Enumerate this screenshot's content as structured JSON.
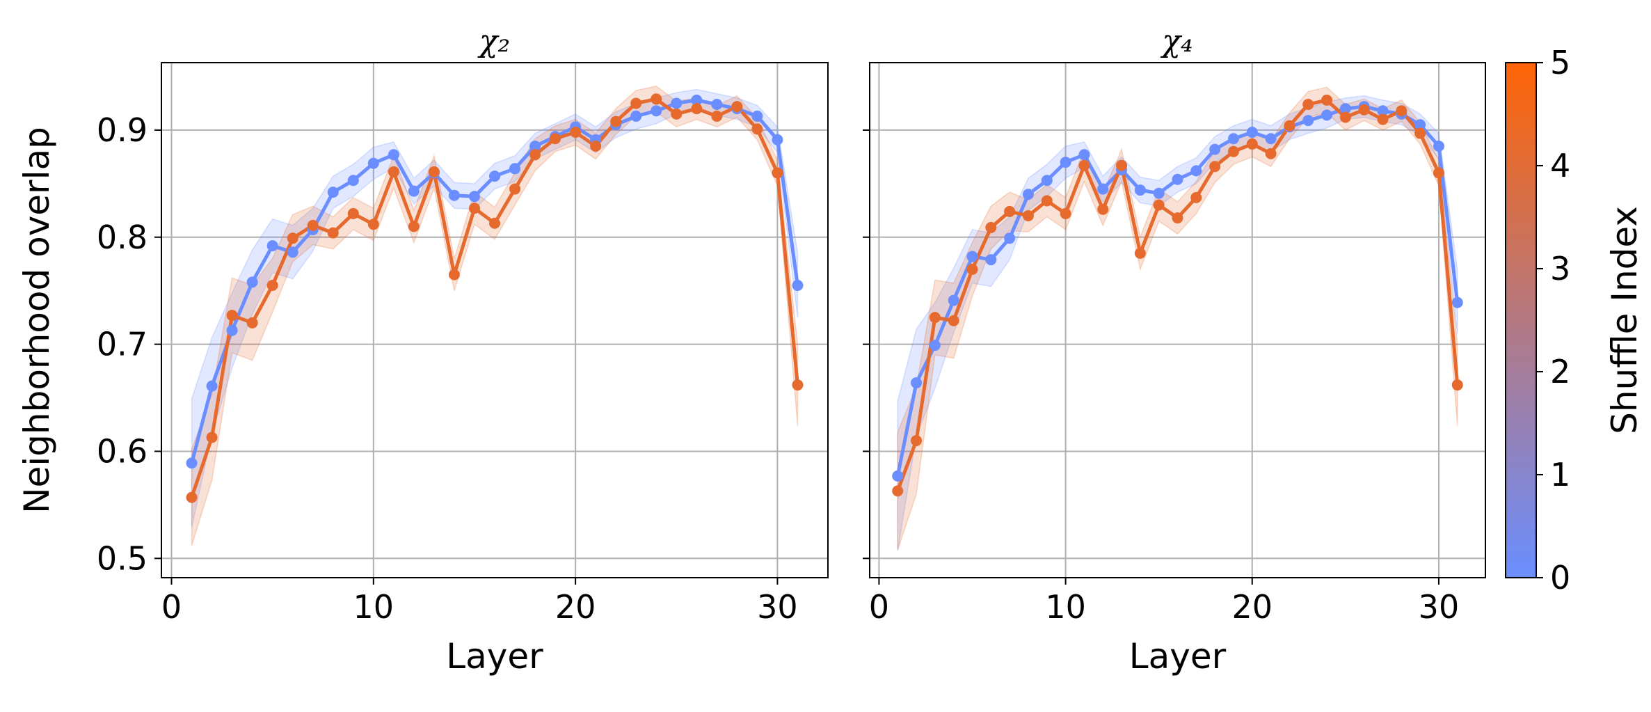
{
  "chart_data": [
    {
      "type": "line",
      "title": "χ₂",
      "xlabel": "Layer",
      "ylabel": "Neighborhood overlap",
      "xlim": [
        -0.5,
        32.5
      ],
      "ylim": [
        0.482,
        0.963
      ],
      "xticks": [
        0,
        10,
        20,
        30
      ],
      "yticks": [
        0.5,
        0.6,
        0.7,
        0.8,
        0.9
      ],
      "grid": true,
      "x": [
        1,
        2,
        3,
        4,
        5,
        6,
        7,
        8,
        9,
        10,
        11,
        12,
        13,
        14,
        15,
        16,
        17,
        18,
        19,
        20,
        21,
        22,
        23,
        24,
        25,
        26,
        27,
        28,
        29,
        30,
        31
      ],
      "series": [
        {
          "shuffle_index": 0,
          "color": "#6A8EFF",
          "values": [
            0.589,
            0.661,
            0.713,
            0.758,
            0.792,
            0.786,
            0.807,
            0.842,
            0.853,
            0.869,
            0.877,
            0.843,
            0.86,
            0.839,
            0.838,
            0.857,
            0.864,
            0.885,
            0.894,
            0.903,
            0.891,
            0.905,
            0.913,
            0.918,
            0.925,
            0.928,
            0.924,
            0.92,
            0.913,
            0.891,
            0.755
          ],
          "band": [
            0.06,
            0.045,
            0.035,
            0.03,
            0.025,
            0.025,
            0.02,
            0.015,
            0.015,
            0.015,
            0.012,
            0.012,
            0.012,
            0.012,
            0.012,
            0.012,
            0.012,
            0.012,
            0.012,
            0.012,
            0.012,
            0.012,
            0.012,
            0.012,
            0.01,
            0.01,
            0.01,
            0.01,
            0.01,
            0.012,
            0.03
          ]
        },
        {
          "shuffle_index": 5,
          "color": "#E66A2E",
          "values": [
            0.557,
            0.613,
            0.727,
            0.72,
            0.755,
            0.799,
            0.811,
            0.804,
            0.822,
            0.812,
            0.861,
            0.81,
            0.861,
            0.765,
            0.827,
            0.813,
            0.845,
            0.877,
            0.892,
            0.898,
            0.885,
            0.908,
            0.925,
            0.929,
            0.915,
            0.92,
            0.913,
            0.922,
            0.901,
            0.86,
            0.662
          ],
          "band": [
            0.045,
            0.04,
            0.035,
            0.035,
            0.025,
            0.022,
            0.018,
            0.015,
            0.015,
            0.015,
            0.015,
            0.015,
            0.015,
            0.015,
            0.015,
            0.015,
            0.015,
            0.015,
            0.012,
            0.012,
            0.012,
            0.012,
            0.012,
            0.012,
            0.012,
            0.01,
            0.01,
            0.01,
            0.01,
            0.012,
            0.038
          ]
        }
      ]
    },
    {
      "type": "line",
      "title": "χ₄",
      "xlabel": "Layer",
      "ylabel": "",
      "xlim": [
        -0.5,
        32.5
      ],
      "ylim": [
        0.482,
        0.963
      ],
      "xticks": [
        0,
        10,
        20,
        30
      ],
      "yticks": [
        0.5,
        0.6,
        0.7,
        0.8,
        0.9
      ],
      "grid": true,
      "x": [
        1,
        2,
        3,
        4,
        5,
        6,
        7,
        8,
        9,
        10,
        11,
        12,
        13,
        14,
        15,
        16,
        17,
        18,
        19,
        20,
        21,
        22,
        23,
        24,
        25,
        26,
        27,
        28,
        29,
        30,
        31
      ],
      "series": [
        {
          "shuffle_index": 0,
          "color": "#6A8EFF",
          "values": [
            0.577,
            0.664,
            0.699,
            0.741,
            0.782,
            0.779,
            0.799,
            0.84,
            0.853,
            0.87,
            0.877,
            0.845,
            0.863,
            0.844,
            0.841,
            0.854,
            0.862,
            0.882,
            0.892,
            0.898,
            0.892,
            0.903,
            0.909,
            0.914,
            0.92,
            0.922,
            0.918,
            0.915,
            0.905,
            0.885,
            0.739
          ],
          "band": [
            0.07,
            0.05,
            0.04,
            0.03,
            0.025,
            0.025,
            0.02,
            0.015,
            0.015,
            0.015,
            0.012,
            0.012,
            0.012,
            0.012,
            0.012,
            0.012,
            0.012,
            0.012,
            0.012,
            0.012,
            0.012,
            0.012,
            0.012,
            0.012,
            0.01,
            0.01,
            0.01,
            0.01,
            0.01,
            0.012,
            0.03
          ]
        },
        {
          "shuffle_index": 5,
          "color": "#E66A2E",
          "values": [
            0.563,
            0.61,
            0.725,
            0.722,
            0.77,
            0.809,
            0.824,
            0.82,
            0.834,
            0.822,
            0.867,
            0.826,
            0.867,
            0.785,
            0.83,
            0.818,
            0.837,
            0.866,
            0.88,
            0.887,
            0.878,
            0.904,
            0.924,
            0.928,
            0.912,
            0.919,
            0.91,
            0.918,
            0.897,
            0.86,
            0.662
          ],
          "band": [
            0.055,
            0.05,
            0.035,
            0.035,
            0.025,
            0.02,
            0.018,
            0.015,
            0.015,
            0.015,
            0.015,
            0.015,
            0.015,
            0.015,
            0.015,
            0.015,
            0.015,
            0.015,
            0.012,
            0.012,
            0.012,
            0.012,
            0.012,
            0.012,
            0.012,
            0.01,
            0.01,
            0.01,
            0.01,
            0.012,
            0.038
          ]
        }
      ]
    }
  ],
  "colorbar": {
    "label": "Shuffle Index",
    "ticks": [
      "0",
      "1",
      "2",
      "3",
      "4",
      "5"
    ],
    "range": [
      0,
      5
    ],
    "color_low": "#6A8EFF",
    "color_high": "#FF6405"
  }
}
